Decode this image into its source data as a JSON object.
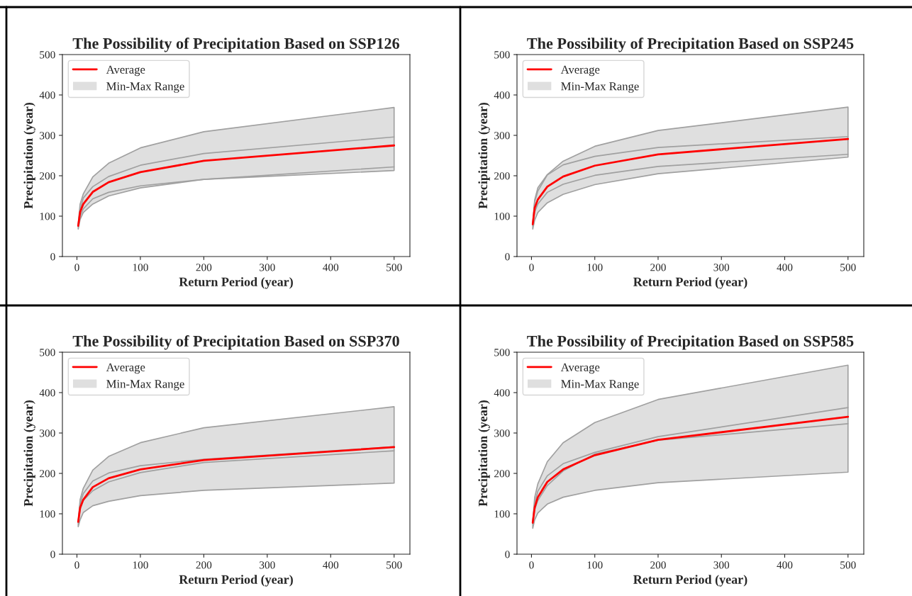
{
  "chart_data": [
    {
      "type": "line",
      "title": "The Possibility of Precipitation Based on SSP126",
      "xlabel": "Return Period (year)",
      "ylabel": "Precipitation (year)",
      "x": [
        2,
        5,
        10,
        25,
        50,
        100,
        200,
        500
      ],
      "xlim": [
        -22.9,
        524.9
      ],
      "ylim": [
        0,
        500
      ],
      "xticks": [
        0,
        100,
        200,
        300,
        400,
        500
      ],
      "yticks": [
        0,
        100,
        200,
        300,
        400,
        500
      ],
      "legend": "top left",
      "grid": false,
      "series": [
        {
          "type": "line",
          "name": "Average",
          "color": "#ff0000",
          "values": [
            76,
            110,
            130,
            160,
            184,
            209,
            237,
            275
          ]
        },
        {
          "type": "area",
          "name": "Min-Max Range",
          "color": "#dfdfdf",
          "values": [
            null,
            null,
            null,
            null,
            null,
            null,
            null,
            null
          ],
          "lower": [
            68,
            92,
            109,
            130,
            150,
            170,
            191,
            213
          ],
          "upper": [
            80,
            130,
            155,
            197,
            231,
            269,
            309,
            369
          ]
        },
        {
          "type": "line",
          "color": "#a0a0a0",
          "values": [
            78,
            115,
            145,
            173,
            198,
            226,
            255,
            296
          ]
        },
        {
          "type": "line",
          "color": "#a0a0a0",
          "values": [
            75,
            100,
            118,
            143,
            159,
            175,
            191,
            222
          ]
        }
      ]
    },
    {
      "type": "line",
      "title": "The Possibility of Precipitation Based on SSP245",
      "xlabel": "Return Period (year)",
      "ylabel": "Precipitation (year)",
      "x": [
        2,
        5,
        10,
        25,
        50,
        100,
        200,
        500
      ],
      "xlim": [
        -22.9,
        524.9
      ],
      "ylim": [
        0,
        500
      ],
      "xticks": [
        0,
        100,
        200,
        300,
        400,
        500
      ],
      "yticks": [
        0,
        100,
        200,
        300,
        400,
        500
      ],
      "legend": "top left",
      "grid": false,
      "series": [
        {
          "type": "line",
          "name": "Average",
          "color": "#ff0000",
          "values": [
            80,
            120,
            141,
            173,
            198,
            225,
            253,
            291
          ]
        },
        {
          "type": "area",
          "name": "Min-Max Range",
          "color": "#dfdfdf",
          "values": [
            null,
            null,
            null,
            null,
            null,
            null,
            null,
            null
          ],
          "lower": [
            68,
            90,
            109,
            133,
            154,
            178,
            205,
            246
          ],
          "upper": [
            82,
            140,
            170,
            203,
            236,
            273,
            312,
            370
          ]
        },
        {
          "type": "line",
          "color": "#a0a0a0",
          "values": [
            80,
            135,
            162,
            202,
            227,
            248,
            270,
            297
          ]
        },
        {
          "type": "line",
          "color": "#a0a0a0",
          "values": [
            78,
            110,
            130,
            159,
            179,
            201,
            223,
            253
          ]
        }
      ]
    },
    {
      "type": "line",
      "title": "The Possibility of Precipitation Based on SSP370",
      "xlabel": "Return Period (year)",
      "ylabel": "Precipitation (year)",
      "x": [
        2,
        5,
        10,
        25,
        50,
        100,
        200,
        500
      ],
      "xlim": [
        -22.9,
        524.9
      ],
      "ylim": [
        0,
        500
      ],
      "xticks": [
        0,
        100,
        200,
        300,
        400,
        500
      ],
      "yticks": [
        0,
        100,
        200,
        300,
        400,
        500
      ],
      "legend": "top left",
      "grid": false,
      "series": [
        {
          "type": "line",
          "name": "Average",
          "color": "#ff0000",
          "values": [
            80,
            115,
            135,
            166,
            188,
            210,
            233,
            265
          ]
        },
        {
          "type": "area",
          "name": "Min-Max Range",
          "color": "#dfdfdf",
          "values": [
            null,
            null,
            null,
            null,
            null,
            null,
            null,
            null
          ],
          "lower": [
            68,
            85,
            103,
            120,
            131,
            145,
            158,
            176
          ],
          "upper": [
            80,
            135,
            163,
            208,
            242,
            276,
            313,
            365
          ]
        },
        {
          "type": "line",
          "color": "#a0a0a0",
          "values": [
            80,
            125,
            150,
            181,
            201,
            219,
            235,
            266
          ]
        },
        {
          "type": "line",
          "color": "#a0a0a0",
          "values": [
            78,
            110,
            133,
            157,
            179,
            202,
            227,
            256
          ]
        }
      ]
    },
    {
      "type": "line",
      "title": "The Possibility of Precipitation Based on SSP585",
      "xlabel": "Return Period (year)",
      "ylabel": "Precipitation (year)",
      "x": [
        2,
        5,
        10,
        25,
        50,
        100,
        200,
        500
      ],
      "xlim": [
        -22.9,
        524.9
      ],
      "ylim": [
        0,
        500
      ],
      "xticks": [
        0,
        100,
        200,
        300,
        400,
        500
      ],
      "yticks": [
        0,
        100,
        200,
        300,
        400,
        500
      ],
      "legend": "top left",
      "grid": false,
      "series": [
        {
          "type": "line",
          "name": "Average",
          "color": "#ff0000",
          "values": [
            78,
            115,
            141,
            179,
            210,
            245,
            283,
            340
          ]
        },
        {
          "type": "area",
          "name": "Min-Max Range",
          "color": "#dfdfdf",
          "values": [
            null,
            null,
            null,
            null,
            null,
            null,
            null,
            null
          ],
          "lower": [
            64,
            85,
            102,
            124,
            141,
            158,
            177,
            203
          ],
          "upper": [
            80,
            140,
            174,
            229,
            276,
            326,
            383,
            468
          ]
        },
        {
          "type": "line",
          "color": "#a0a0a0",
          "values": [
            80,
            125,
            156,
            194,
            224,
            252,
            291,
            363
          ]
        },
        {
          "type": "line",
          "color": "#a0a0a0",
          "values": [
            76,
            110,
            133,
            170,
            206,
            248,
            282,
            323
          ]
        }
      ]
    }
  ]
}
